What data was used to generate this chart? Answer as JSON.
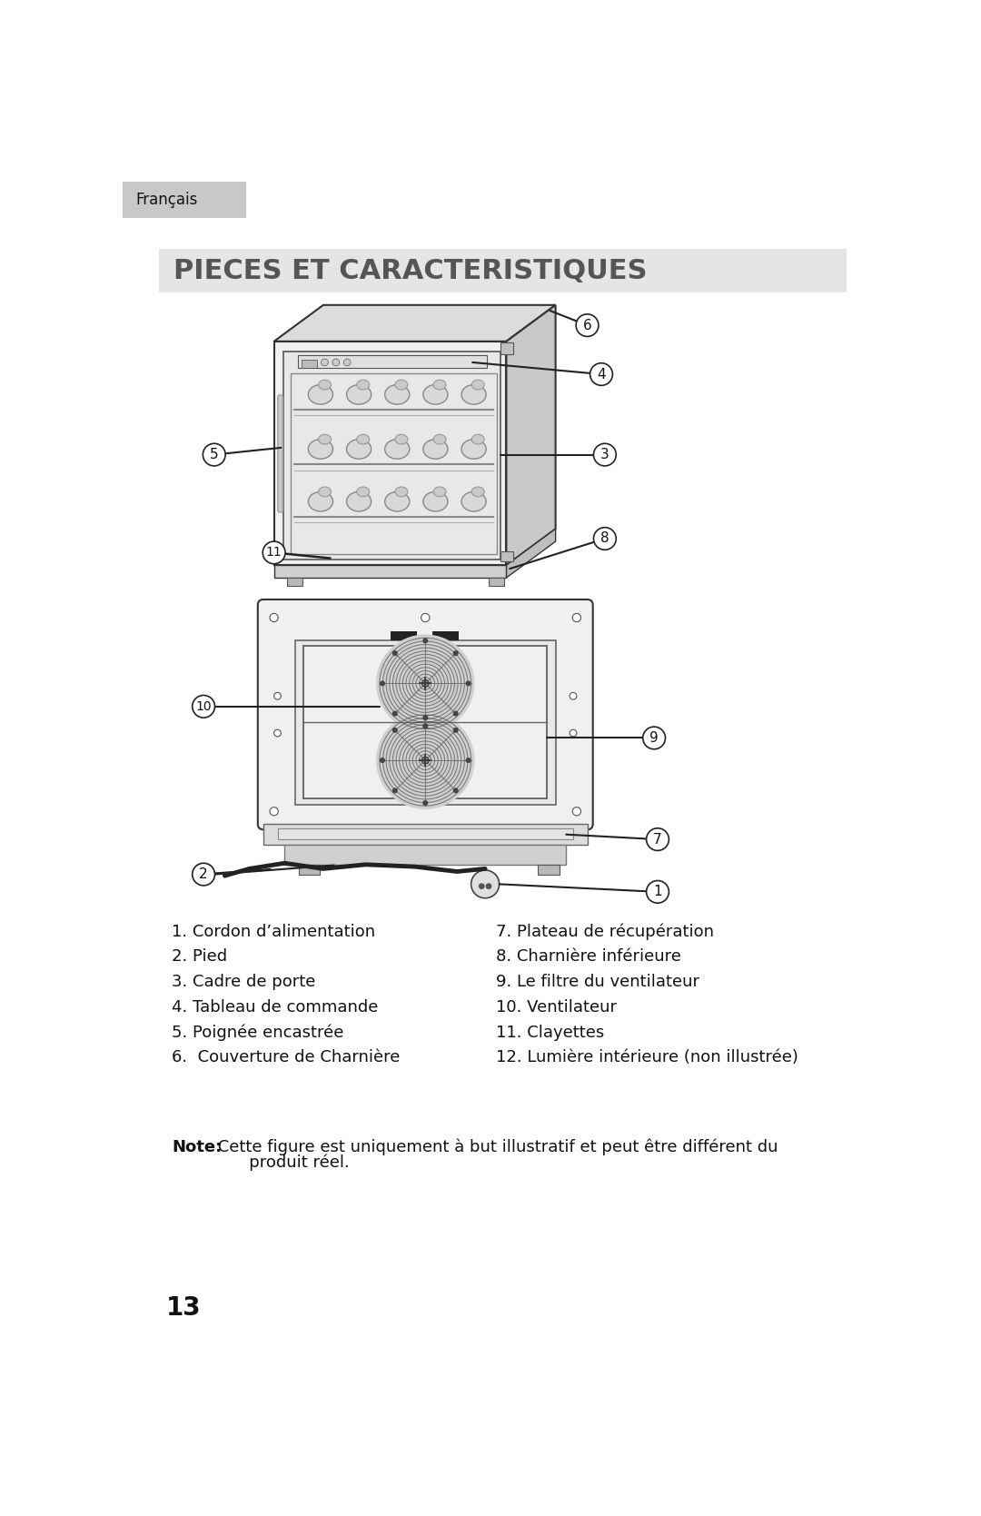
{
  "title": "PIECES ET CARACTERISTIQUES",
  "header_label": "Français",
  "bg_color": "#ffffff",
  "header_bg": "#c8c8c8",
  "title_bg": "#e5e5e5",
  "title_color": "#555555",
  "items_left": [
    "1. Cordon d’alimentation",
    "2. Pied",
    "3. Cadre de porte",
    "4. Tableau de commande",
    "5. Poignée encastrée",
    "6.  Couverture de Charnière"
  ],
  "items_right": [
    "7. Plateau de récupération",
    "8. Charnière inférieure",
    "9. Le filtre du ventilateur",
    "10. Ventilateur",
    "11. Clayettes",
    "12. Lumière intérieure (non illustrée)"
  ],
  "note_bold": "Note:",
  "note_text": " Cette figure est uniquement à but illustratif et peut être différent du",
  "note_text2": "       produit réel.",
  "page_number": "13"
}
